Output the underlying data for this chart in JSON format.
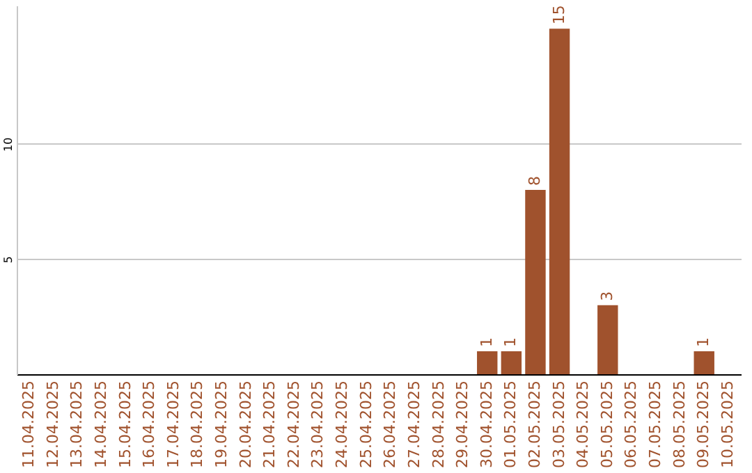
{
  "chart_data": {
    "type": "bar",
    "categories": [
      "11.04.2025",
      "12.04.2025",
      "13.04.2025",
      "14.04.2025",
      "15.04.2025",
      "16.04.2025",
      "17.04.2025",
      "18.04.2025",
      "19.04.2025",
      "20.04.2025",
      "21.04.2025",
      "22.04.2025",
      "23.04.2025",
      "24.04.2025",
      "25.04.2025",
      "26.04.2025",
      "27.04.2025",
      "28.04.2025",
      "29.04.2025",
      "30.04.2025",
      "01.05.2025",
      "02.05.2025",
      "03.05.2025",
      "04.05.2025",
      "05.05.2025",
      "06.05.2025",
      "07.05.2025",
      "08.05.2025",
      "09.05.2025",
      "10.05.2025"
    ],
    "values": [
      0,
      0,
      0,
      0,
      0,
      0,
      0,
      0,
      0,
      0,
      0,
      0,
      0,
      0,
      0,
      0,
      0,
      0,
      0,
      1,
      1,
      8,
      15,
      0,
      3,
      0,
      0,
      0,
      1,
      0
    ],
    "value_labels": [
      null,
      null,
      null,
      null,
      null,
      null,
      null,
      null,
      null,
      null,
      null,
      null,
      null,
      null,
      null,
      null,
      null,
      null,
      null,
      "1",
      "1",
      "8",
      "15",
      null,
      "3",
      null,
      null,
      null,
      "1",
      null
    ],
    "color": "#a0522d",
    "ylim": [
      0,
      16
    ],
    "yticks": [
      5,
      10
    ],
    "grid": "y"
  }
}
